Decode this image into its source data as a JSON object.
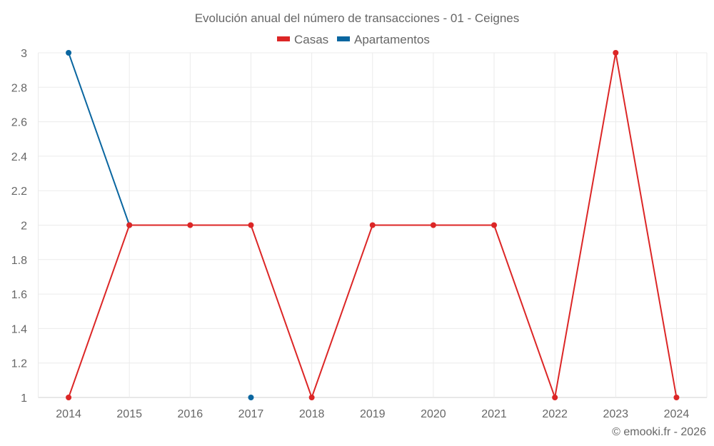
{
  "chart_data": {
    "type": "line",
    "title": "Evolución anual del número de transacciones - 01 - Ceignes",
    "categories": [
      "2014",
      "2015",
      "2016",
      "2017",
      "2018",
      "2019",
      "2020",
      "2021",
      "2022",
      "2023",
      "2024"
    ],
    "series": [
      {
        "name": "Casas",
        "color": "#dc2626",
        "values": [
          1,
          2,
          2,
          2,
          1,
          2,
          2,
          2,
          1,
          3,
          1
        ]
      },
      {
        "name": "Apartamentos",
        "color": "#0a66a0",
        "values": [
          3,
          2,
          null,
          1,
          null,
          null,
          null,
          null,
          null,
          null,
          null
        ]
      }
    ],
    "ylim": [
      1,
      3
    ],
    "yticks": [
      "1",
      "1.2",
      "1.4",
      "1.6",
      "1.8",
      "2",
      "2.2",
      "2.4",
      "2.6",
      "2.8",
      "3"
    ],
    "legend_position": "top-center",
    "grid": true,
    "credit": "© emooki.fr - 2026"
  }
}
